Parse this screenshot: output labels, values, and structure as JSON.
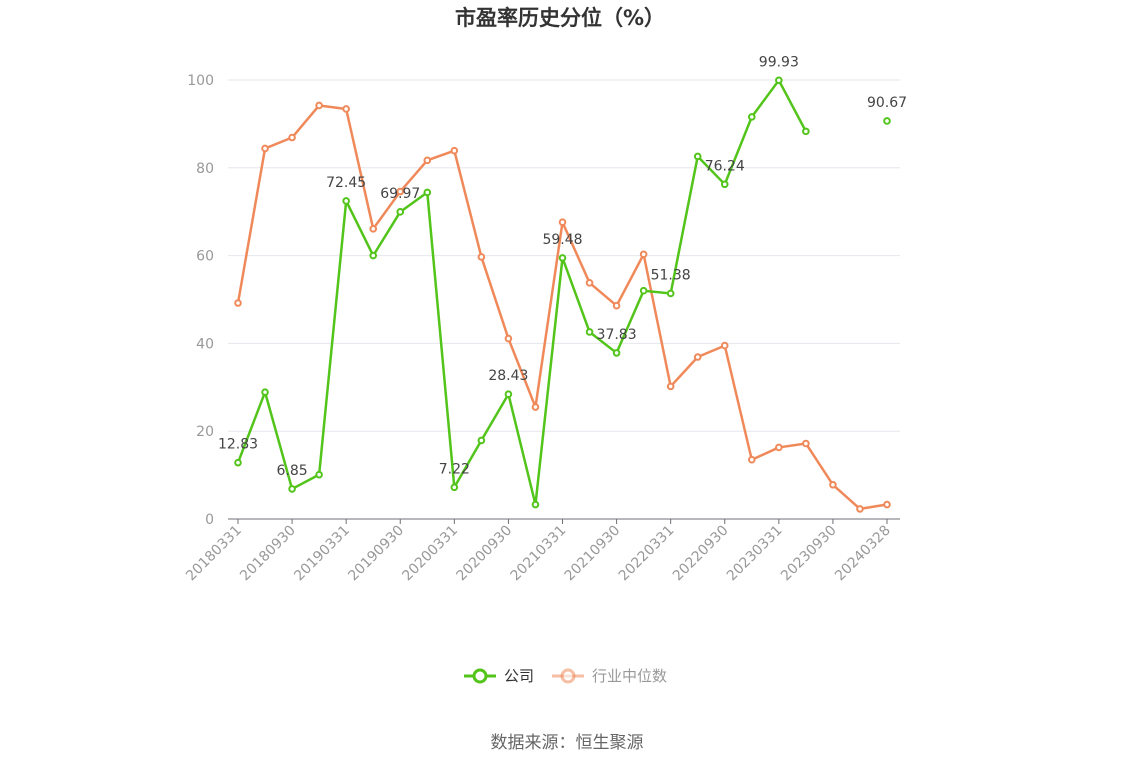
{
  "chart_data": {
    "type": "line",
    "title": "市盈率历史分位（%）",
    "x": [
      "20180331",
      "20180630",
      "20180930",
      "20181231",
      "20190331",
      "20190630",
      "20190930",
      "20191231",
      "20200331",
      "20200630",
      "20200930",
      "20201231",
      "20210331",
      "20210630",
      "20210930",
      "20211231",
      "20220331",
      "20220630",
      "20220930",
      "20221231",
      "20230331",
      "20230630",
      "20230930",
      "20231231",
      "20240328"
    ],
    "x_tick_labels": [
      "20180331",
      "20180930",
      "20190331",
      "20190930",
      "20200331",
      "20200930",
      "20210331",
      "20210930",
      "20220331",
      "20220930",
      "20230331",
      "20230930",
      "20240328"
    ],
    "ylim": [
      0,
      100
    ],
    "yticks": [
      0,
      20,
      40,
      60,
      80,
      100
    ],
    "grid": true,
    "legend_position": "bottom",
    "series": [
      {
        "name": "公司",
        "color": "#52c41a",
        "values": [
          12.83,
          28.9,
          6.85,
          10.1,
          72.45,
          60.0,
          69.97,
          74.4,
          7.22,
          17.9,
          28.43,
          3.3,
          59.48,
          42.6,
          37.83,
          52.0,
          51.38,
          82.6,
          76.24,
          91.6,
          99.93,
          88.3,
          null,
          null,
          90.67
        ],
        "labels": {
          "0": "12.83",
          "2": "6.85",
          "4": "72.45",
          "6": "69.97",
          "8": "7.22",
          "10": "28.43",
          "12": "59.48",
          "14": "37.83",
          "16": "51.38",
          "18": "76.24",
          "20": "99.93",
          "24": "90.67"
        }
      },
      {
        "name": "行业中位数",
        "color": "#f0895a",
        "values": [
          49.2,
          84.4,
          86.9,
          94.2,
          93.4,
          66.1,
          74.6,
          81.7,
          83.9,
          59.7,
          41.1,
          25.5,
          67.6,
          53.8,
          48.6,
          60.3,
          30.2,
          36.9,
          39.5,
          13.5,
          16.3,
          17.2,
          7.8,
          2.3,
          3.3
        ]
      }
    ]
  },
  "legend": {
    "company": "公司",
    "industry": "行业中位数",
    "inactive_color": "#999999"
  },
  "source": "数据来源：恒生聚源"
}
